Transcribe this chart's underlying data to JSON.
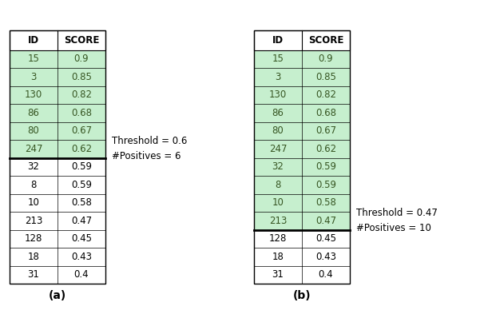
{
  "ids": [
    15,
    3,
    130,
    86,
    80,
    247,
    32,
    8,
    10,
    213,
    128,
    18,
    31
  ],
  "scores": [
    0.9,
    0.85,
    0.82,
    0.68,
    0.67,
    0.62,
    0.59,
    0.59,
    0.58,
    0.47,
    0.45,
    0.43,
    0.4
  ],
  "green_color": "#c6efce",
  "green_text": "#375623",
  "white_bg": "#ffffff",
  "border_color": "#000000",
  "table_a_threshold_idx": 6,
  "table_b_threshold_idx": 10,
  "label_a": "(a)",
  "label_b": "(b)",
  "annotation_a": "Threshold = 0.6\n#Positives = 6",
  "annotation_b": "Threshold = 0.47\n#Positives = 10",
  "col_headers": [
    "ID",
    "SCORE"
  ],
  "fig_width": 6.01,
  "fig_height": 4.13
}
